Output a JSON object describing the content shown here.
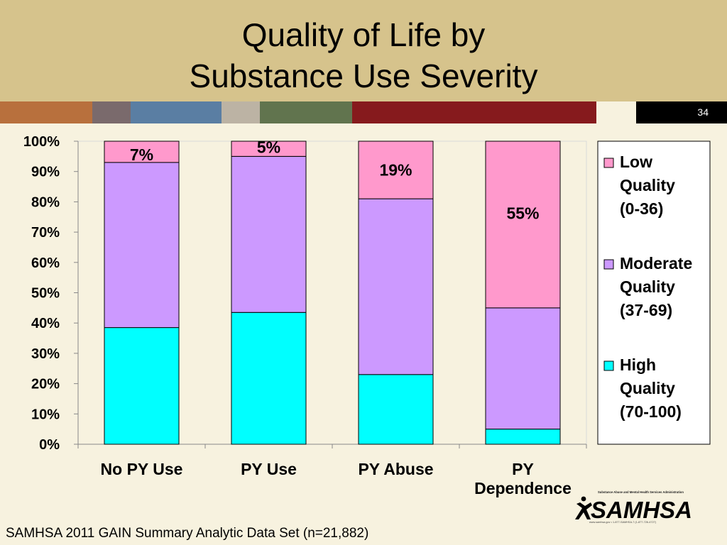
{
  "title_lines": [
    "Quality of Life by",
    "Substance Use Severity"
  ],
  "page_number": "34",
  "footer": "SAMHSA 2011 GAIN Summary Analytic Data Set (n=21,882)",
  "logo": {
    "name": "SAMHSA",
    "tagline": "Substance Abuse and Mental Health Services Administration",
    "contact": "www.samhsa.gov • 1-877-SAMHSA-7 (1-877-726-4727)"
  },
  "colors": {
    "title_band": "#d6c38c",
    "stripe": [
      "#b8703d",
      "#7a6a6c",
      "#5a7ea3",
      "#bcb3a4",
      "#61744e",
      "#861a1d",
      "#f7f2df",
      "#000000"
    ],
    "low": "#ff99cc",
    "moderate": "#cc99ff",
    "high": "#00ffff"
  },
  "chart_data": {
    "type": "bar",
    "stacked": true,
    "percent": true,
    "categories": [
      "No PY Use",
      "PY Use",
      "PY Abuse",
      "PY Dependence"
    ],
    "category_lines": [
      [
        "No PY Use"
      ],
      [
        "PY Use"
      ],
      [
        "PY Abuse"
      ],
      [
        "PY",
        "Dependence"
      ]
    ],
    "series": [
      {
        "name": "High Quality (70-100)",
        "name_lines": [
          "High",
          "Quality",
          "(70-100)"
        ],
        "color": "#00ffff",
        "values": [
          38.5,
          43.5,
          23,
          5
        ]
      },
      {
        "name": "Moderate Quality (37-69)",
        "name_lines": [
          "Moderate",
          "Quality",
          "(37-69)"
        ],
        "color": "#cc99ff",
        "values": [
          54.5,
          51.5,
          58,
          40
        ]
      },
      {
        "name": "Low Quality (0-36)",
        "name_lines": [
          "Low",
          "Quality",
          "(0-36)"
        ],
        "color": "#ff99cc",
        "values": [
          7,
          5,
          19,
          55
        ]
      }
    ],
    "data_labels": [
      "7%",
      "5%",
      "19%",
      "55%"
    ],
    "ylim": [
      0,
      100
    ],
    "yticks": [
      "0%",
      "10%",
      "20%",
      "30%",
      "40%",
      "50%",
      "60%",
      "70%",
      "80%",
      "90%",
      "100%"
    ],
    "legend": "right",
    "grid": false
  }
}
